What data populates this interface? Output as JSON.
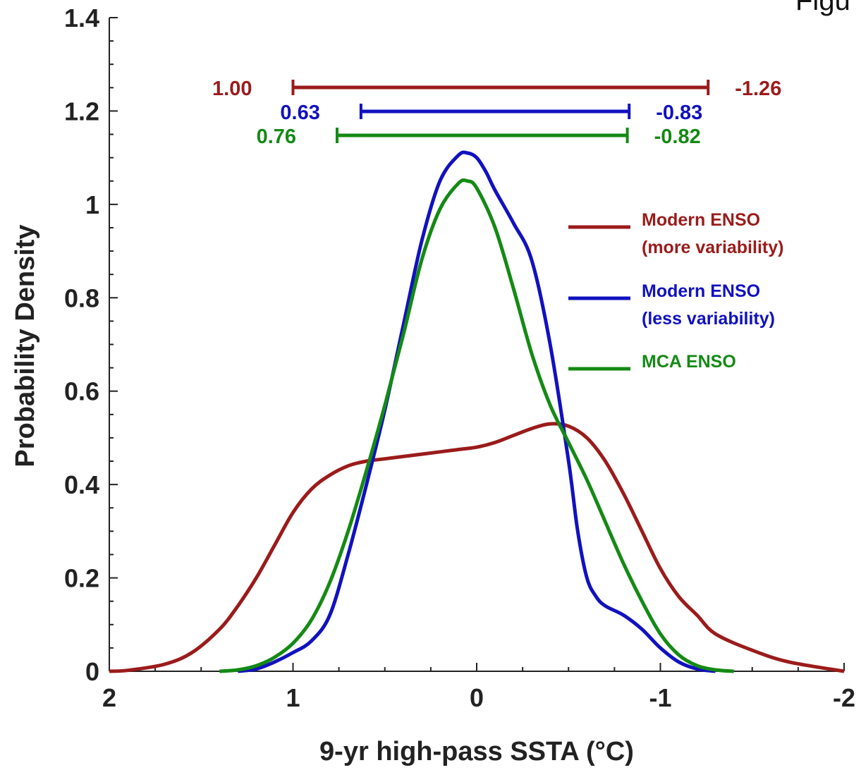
{
  "corner_text": "Figu",
  "chart_data": {
    "type": "line",
    "xlabel": "9-yr high-pass SSTA (°C)",
    "ylabel": "Probability Density",
    "xlim": [
      2,
      -2
    ],
    "ylim": [
      0,
      1.4
    ],
    "x_reversed": true,
    "xticks": [
      2,
      1,
      0,
      -1,
      -2
    ],
    "xtick_labels": [
      "2",
      "1",
      "0",
      "-1",
      "-2"
    ],
    "yticks": [
      0,
      0.2,
      0.4,
      0.6,
      0.8,
      1,
      1.2,
      1.4
    ],
    "ytick_labels": [
      "0",
      "0.2",
      "0.4",
      "0.6",
      "0.8",
      "1",
      "1.2",
      "1.4"
    ],
    "grid": false,
    "legend_position": "right",
    "series": [
      {
        "name": "Modern ENSO (more variability)",
        "legend_lines": [
          "Modern ENSO",
          "(more variability)"
        ],
        "color": "#9B1B1B",
        "x": [
          2.0,
          1.9,
          1.7,
          1.55,
          1.4,
          1.3,
          1.2,
          1.1,
          1.0,
          0.9,
          0.8,
          0.7,
          0.6,
          0.5,
          0.4,
          0.3,
          0.2,
          0.1,
          0.0,
          -0.1,
          -0.2,
          -0.3,
          -0.4,
          -0.5,
          -0.6,
          -0.7,
          -0.8,
          -0.9,
          -1.0,
          -1.1,
          -1.2,
          -1.3,
          -1.5,
          -1.7,
          -2.0
        ],
        "y": [
          0.0,
          0.002,
          0.015,
          0.04,
          0.09,
          0.14,
          0.2,
          0.27,
          0.34,
          0.39,
          0.42,
          0.44,
          0.45,
          0.455,
          0.46,
          0.465,
          0.47,
          0.475,
          0.48,
          0.49,
          0.505,
          0.52,
          0.53,
          0.525,
          0.5,
          0.45,
          0.38,
          0.3,
          0.22,
          0.16,
          0.12,
          0.08,
          0.045,
          0.02,
          0.0
        ]
      },
      {
        "name": "Modern ENSO (less variability)",
        "legend_lines": [
          "Modern ENSO",
          "(less variability)"
        ],
        "color": "#1111C0",
        "x": [
          1.3,
          1.2,
          1.1,
          1.0,
          0.9,
          0.8,
          0.7,
          0.6,
          0.5,
          0.4,
          0.3,
          0.2,
          0.1,
          0.05,
          0.0,
          -0.05,
          -0.1,
          -0.2,
          -0.3,
          -0.4,
          -0.5,
          -0.55,
          -0.6,
          -0.65,
          -0.7,
          -0.8,
          -0.9,
          -1.0,
          -1.1,
          -1.2,
          -1.3
        ],
        "y": [
          0.0,
          0.005,
          0.02,
          0.04,
          0.065,
          0.12,
          0.25,
          0.4,
          0.56,
          0.74,
          0.92,
          1.05,
          1.105,
          1.11,
          1.1,
          1.07,
          1.03,
          0.96,
          0.88,
          0.7,
          0.45,
          0.3,
          0.2,
          0.16,
          0.14,
          0.12,
          0.09,
          0.05,
          0.02,
          0.005,
          0.0
        ]
      },
      {
        "name": "MCA ENSO",
        "legend_lines": [
          "MCA ENSO"
        ],
        "color": "#148A14",
        "x": [
          1.4,
          1.3,
          1.2,
          1.1,
          1.0,
          0.9,
          0.8,
          0.7,
          0.6,
          0.5,
          0.4,
          0.3,
          0.2,
          0.1,
          0.05,
          0.0,
          -0.1,
          -0.2,
          -0.3,
          -0.4,
          -0.5,
          -0.6,
          -0.7,
          -0.8,
          -0.9,
          -1.0,
          -1.1,
          -1.2,
          -1.3,
          -1.4
        ],
        "y": [
          0.0,
          0.003,
          0.012,
          0.03,
          0.06,
          0.11,
          0.19,
          0.3,
          0.43,
          0.57,
          0.72,
          0.88,
          0.99,
          1.045,
          1.05,
          1.035,
          0.95,
          0.82,
          0.68,
          0.57,
          0.49,
          0.41,
          0.32,
          0.23,
          0.15,
          0.08,
          0.035,
          0.012,
          0.003,
          0.0
        ]
      }
    ],
    "ranges": [
      {
        "color": "#9B1B1B",
        "y": 1.25,
        "left_value": 1.0,
        "right_value": -1.26,
        "left_label": "1.00",
        "right_label": "-1.26"
      },
      {
        "color": "#1111C0",
        "y": 1.2,
        "left_value": 0.63,
        "right_value": -0.83,
        "left_label": "0.63",
        "right_label": "-0.83"
      },
      {
        "color": "#148A14",
        "y": 1.15,
        "left_value": 0.76,
        "right_value": -0.82,
        "left_label": "0.76",
        "right_label": "-0.82"
      }
    ]
  }
}
